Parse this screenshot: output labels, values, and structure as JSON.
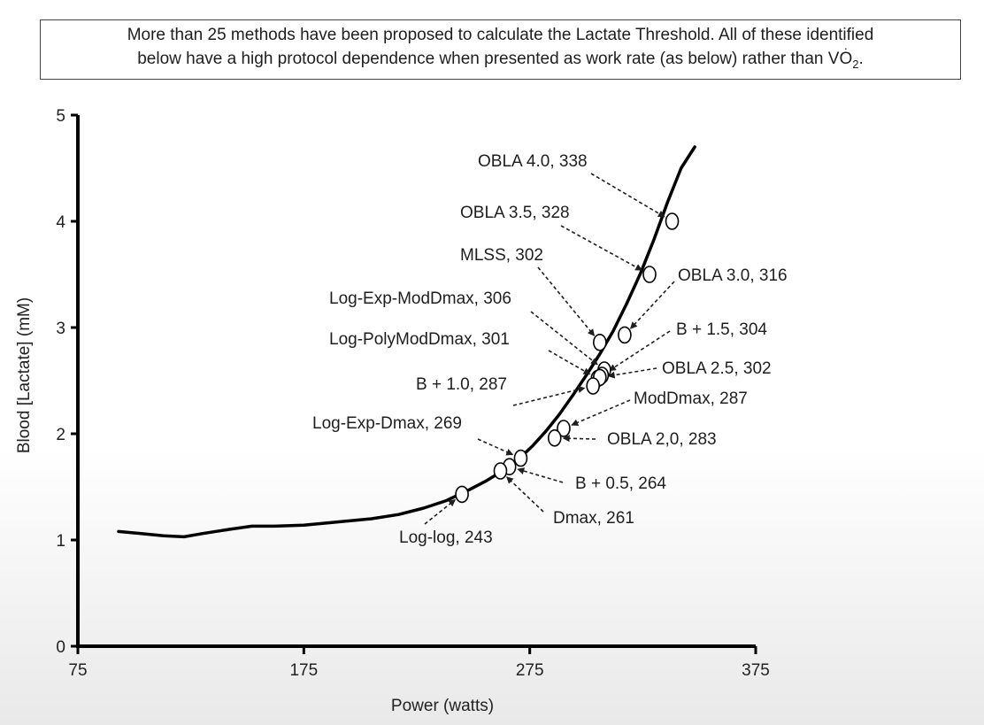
{
  "caption": {
    "line1": "More than 25 methods have been proposed to calculate the Lactate Threshold. All of these identified",
    "line2_prefix": "below have a high protocol dependence when presented as work rate (as below) rather than V",
    "line2_o": "O",
    "line2_sub": "2",
    "line2_suffix": "."
  },
  "chart_data": {
    "type": "line",
    "xlabel": "Power (watts)",
    "ylabel": "Blood [Lactate] (mM)",
    "xlim": [
      75,
      375
    ],
    "ylim": [
      0,
      5
    ],
    "xticks": [
      75,
      175,
      275,
      375
    ],
    "yticks": [
      0,
      1,
      2,
      3,
      4,
      5
    ],
    "grid": false,
    "series": [
      {
        "x": [
          93,
          103,
          113,
          122,
          130,
          142,
          152,
          162,
          175,
          190,
          205,
          217,
          228,
          238,
          248,
          256,
          263,
          270,
          276,
          282,
          288,
          294,
          300,
          306,
          312,
          318,
          324,
          330,
          336,
          342,
          348
        ],
        "y": [
          1.08,
          1.06,
          1.04,
          1.03,
          1.06,
          1.1,
          1.13,
          1.13,
          1.14,
          1.17,
          1.2,
          1.24,
          1.3,
          1.37,
          1.47,
          1.56,
          1.65,
          1.76,
          1.88,
          2.02,
          2.18,
          2.36,
          2.55,
          2.75,
          2.97,
          3.23,
          3.51,
          3.83,
          4.18,
          4.5,
          4.7
        ]
      }
    ],
    "markers": [
      {
        "label": "OBLA 4.0, 338",
        "x": 338,
        "y": 4.0
      },
      {
        "label": "OBLA 3.5, 328",
        "x": 328,
        "y": 3.5
      },
      {
        "label": "OBLA 3.0, 316",
        "x": 317,
        "y": 2.93
      },
      {
        "label": "MLSS, 302",
        "x": 306,
        "y": 2.86
      },
      {
        "label": "Log-Exp-ModDmax, 306",
        "x": 308,
        "y": 2.6
      },
      {
        "label": "Log-PolyModDmax, 301",
        "x": 305,
        "y": 2.52
      },
      {
        "label": "B + 1.5, 304",
        "x": 307,
        "y": 2.55
      },
      {
        "label": "OBLA 2.5, 302",
        "x": 306,
        "y": 2.53
      },
      {
        "label": "B + 1.0, 287",
        "x": 303,
        "y": 2.45
      },
      {
        "label": "ModDmax, 287",
        "x": 290,
        "y": 2.05
      },
      {
        "label": "OBLA 2,0, 283",
        "x": 286,
        "y": 1.96
      },
      {
        "label": "Log-Exp-Dmax, 269",
        "x": 271,
        "y": 1.77
      },
      {
        "label": "B + 0.5, 264",
        "x": 266,
        "y": 1.69
      },
      {
        "label": "Dmax, 261",
        "x": 262,
        "y": 1.65
      },
      {
        "label": "Log-log, 243",
        "x": 245,
        "y": 1.43
      }
    ]
  }
}
